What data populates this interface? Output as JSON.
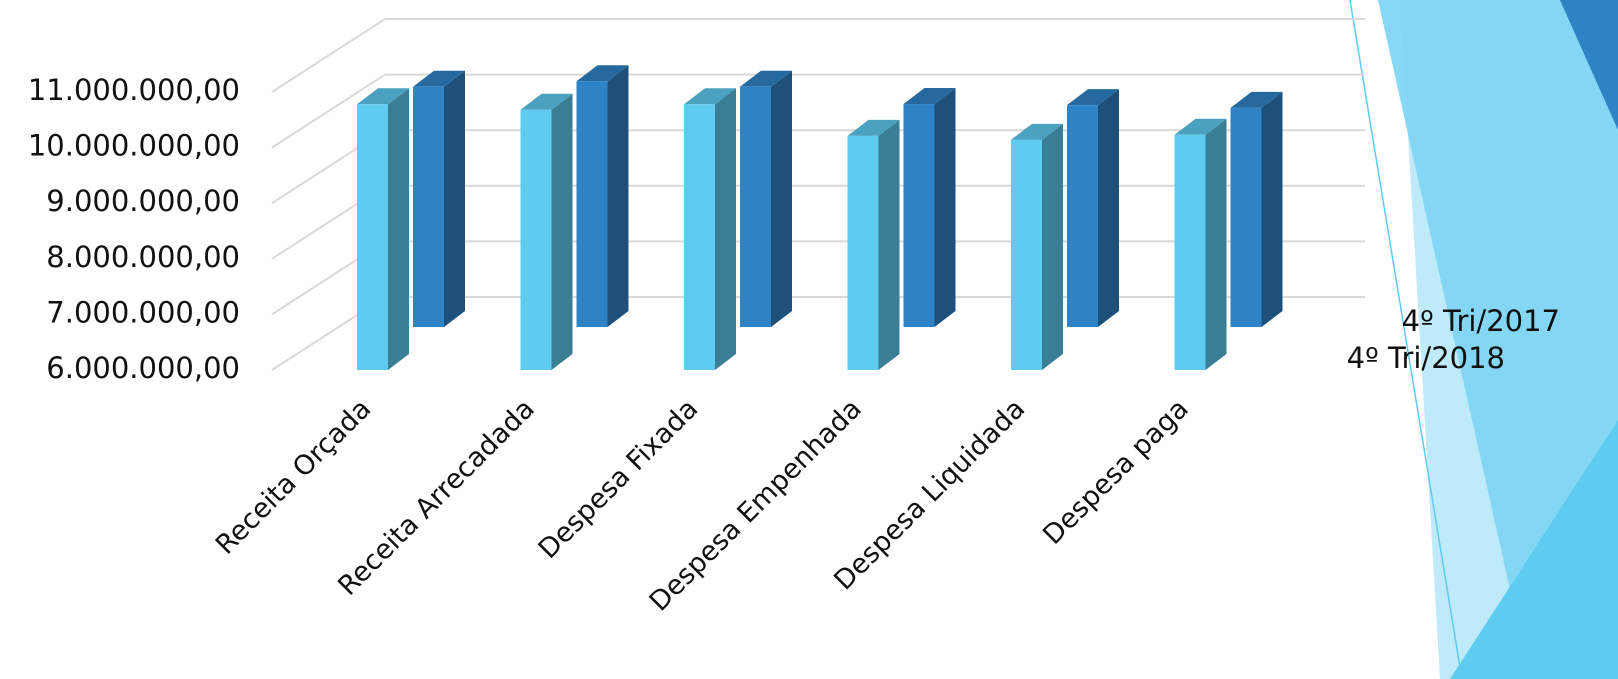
{
  "chart_data": {
    "type": "bar3d",
    "categories": [
      "Receita Orçada",
      "Receita Arrecadada",
      "Despesa Fixada",
      "Despesa Empenhada",
      "Despesa Liquidada",
      "Despesa paga"
    ],
    "series": [
      {
        "name": "4º Tri/2017",
        "color": "#5ecbf0",
        "values": [
          10780000,
          10680000,
          10780000,
          10210000,
          10140000,
          10230000
        ]
      },
      {
        "name": "4º Tri/2018",
        "color": "#2e83c6",
        "values": [
          10320000,
          10420000,
          10320000,
          10010000,
          9990000,
          9940000
        ]
      }
    ],
    "ylim": [
      6000000,
      11000000
    ],
    "yticks": [
      {
        "value": 6000000,
        "label": "6.000.000,00"
      },
      {
        "value": 7000000,
        "label": "7.000.000,00"
      },
      {
        "value": 8000000,
        "label": "8.000.000,00"
      },
      {
        "value": 9000000,
        "label": "9.000.000,00"
      },
      {
        "value": 10000000,
        "label": "10.000.000,00"
      },
      {
        "value": 11000000,
        "label": "11.000.000,00"
      }
    ],
    "grid": true
  }
}
